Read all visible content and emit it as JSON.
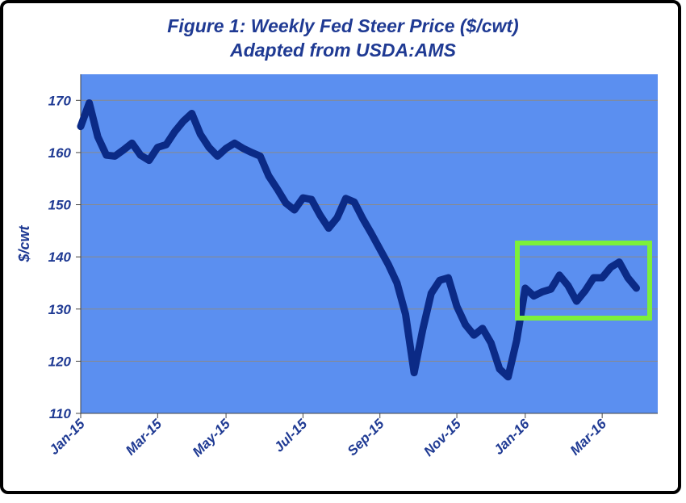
{
  "chart_data": {
    "type": "line",
    "title": "Figure 1:  Weekly Fed Steer Price ($/cwt)",
    "subtitle": "Adapted from USDA:AMS",
    "y_label": "$/cwt",
    "categories": [
      "Jan-15",
      null,
      null,
      null,
      null,
      null,
      null,
      null,
      null,
      "Mar-15",
      null,
      null,
      null,
      null,
      null,
      null,
      null,
      "May-15",
      null,
      null,
      null,
      null,
      null,
      null,
      null,
      null,
      "Jul-15",
      null,
      null,
      null,
      null,
      null,
      null,
      null,
      null,
      "Sep-15",
      null,
      null,
      null,
      null,
      null,
      null,
      null,
      null,
      "Nov-15",
      null,
      null,
      null,
      null,
      null,
      null,
      null,
      "Jan-16",
      null,
      null,
      null,
      null,
      null,
      null,
      null,
      null,
      "Mar-16",
      null,
      null,
      null,
      null
    ],
    "series": [
      {
        "name": "Weekly Fed Steer Price",
        "color": "#0b2a86",
        "values": [
          165,
          169.5,
          163,
          159.5,
          159.3,
          160.5,
          161.8,
          159.5,
          158.5,
          161,
          161.5,
          164,
          166,
          167.5,
          163.5,
          161,
          159.3,
          160.8,
          161.8,
          160.8,
          160,
          159.3,
          155.5,
          153,
          150.3,
          149,
          151.3,
          151,
          148,
          145.5,
          147.5,
          151.2,
          150.5,
          147.3,
          144.5,
          141.5,
          138.5,
          135,
          129,
          117.8,
          126,
          133,
          135.5,
          136,
          130.5,
          127,
          125,
          126.3,
          123.5,
          118.5,
          117,
          124,
          134,
          132.5,
          133.3,
          133.8,
          136.5,
          134.5,
          131.5,
          133.5,
          136,
          136,
          138,
          139,
          136,
          134
        ]
      }
    ],
    "ylim": [
      110,
      175
    ],
    "yticks": [
      110,
      120,
      130,
      140,
      150,
      160,
      170
    ],
    "grid": true,
    "background": "#5b8ff0"
  }
}
